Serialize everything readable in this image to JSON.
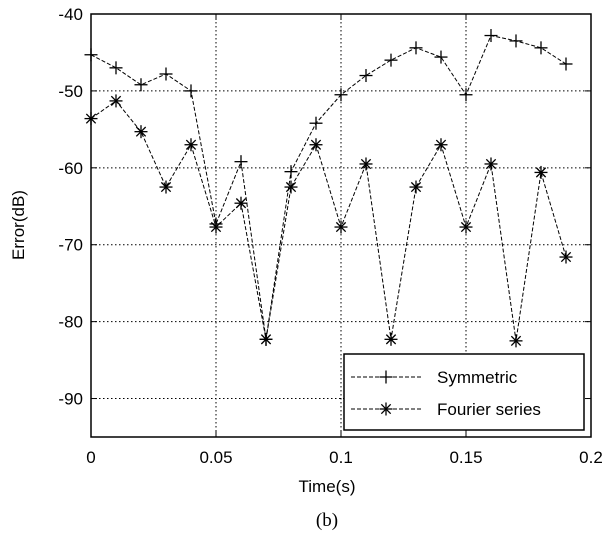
{
  "chart_data": {
    "type": "line",
    "xlabel": "Time(s)",
    "ylabel": "Error(dB)",
    "caption": "(b)",
    "xlim": [
      0,
      0.2
    ],
    "ylim": [
      -95,
      -40
    ],
    "xticks": [
      0,
      0.05,
      0.1,
      0.15,
      0.2
    ],
    "xtick_labels": [
      "0",
      "0.05",
      "0.1",
      "0.15",
      "0.2"
    ],
    "yticks": [
      -40,
      -50,
      -60,
      -70,
      -80,
      -90
    ],
    "ytick_labels": [
      "-40",
      "-50",
      "-60",
      "-70",
      "-80",
      "-90"
    ],
    "grid": true,
    "legend_position": "bottom-right",
    "series": [
      {
        "name": "Symmetric",
        "marker": "plus",
        "x": [
          0,
          0.01,
          0.02,
          0.03,
          0.04,
          0.05,
          0.06,
          0.07,
          0.08,
          0.09,
          0.1,
          0.11,
          0.12,
          0.13,
          0.14,
          0.15,
          0.16,
          0.17,
          0.18,
          0.19
        ],
        "y": [
          -45.3,
          -47.0,
          -49.2,
          -47.8,
          -50.0,
          -67.3,
          -59.2,
          -82.3,
          -60.5,
          -54.2,
          -50.5,
          -48.0,
          -46.0,
          -44.4,
          -45.6,
          -50.5,
          -42.8,
          -43.5,
          -44.4,
          -46.5
        ]
      },
      {
        "name": "Fourier series",
        "marker": "star",
        "x": [
          0,
          0.01,
          0.02,
          0.03,
          0.04,
          0.05,
          0.06,
          0.07,
          0.08,
          0.09,
          0.1,
          0.11,
          0.12,
          0.13,
          0.14,
          0.15,
          0.16,
          0.17,
          0.18,
          0.19
        ],
        "y": [
          -53.6,
          -51.3,
          -55.3,
          -62.5,
          -57.0,
          -67.7,
          -64.6,
          -82.3,
          -62.5,
          -57.0,
          -67.7,
          -59.5,
          -82.3,
          -62.5,
          -57.0,
          -67.7,
          -59.5,
          -82.5,
          -60.6,
          -71.6
        ]
      }
    ]
  }
}
